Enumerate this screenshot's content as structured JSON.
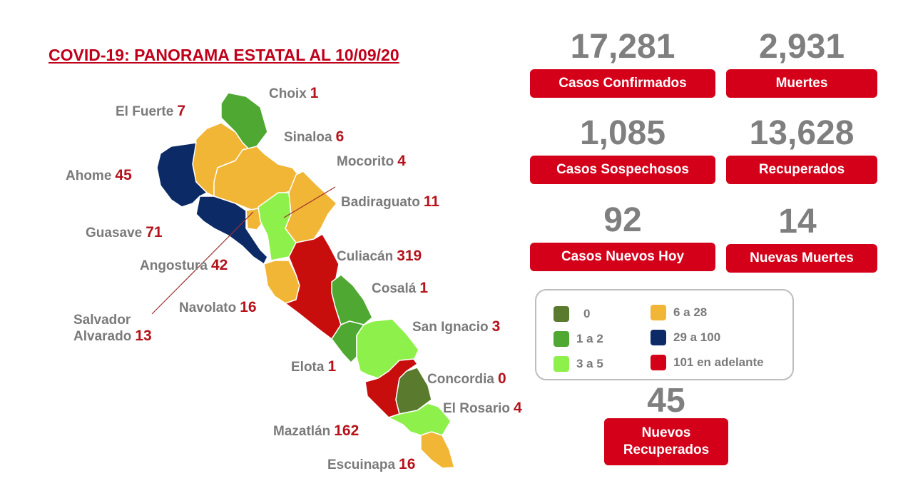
{
  "title": "COVID-19: PANORAMA ESTATAL AL 10/09/20",
  "colors": {
    "c0": "#5a7a2e",
    "c1_2": "#4fa832",
    "c3_5": "#8ef04a",
    "c6_28": "#f2b636",
    "c29_100": "#0c2a66",
    "c101": "#c80d0d",
    "box": "#d40019"
  },
  "municipalities": [
    {
      "name": "Choix",
      "cases": "1",
      "range": "c1_2"
    },
    {
      "name": "El Fuerte",
      "cases": "7",
      "range": "c6_28"
    },
    {
      "name": "Sinaloa",
      "cases": "6",
      "range": "c6_28"
    },
    {
      "name": "Mocorito",
      "cases": "4",
      "range": "c3_5"
    },
    {
      "name": "Ahome",
      "cases": "45",
      "range": "c29_100"
    },
    {
      "name": "Badiraguato",
      "cases": "11",
      "range": "c6_28"
    },
    {
      "name": "Guasave",
      "cases": "71",
      "range": "c29_100"
    },
    {
      "name": "Culiacán",
      "cases": "319",
      "range": "c101"
    },
    {
      "name": "Angostura",
      "cases": "42",
      "range": "c29_100"
    },
    {
      "name": "Cosalá",
      "cases": "1",
      "range": "c1_2"
    },
    {
      "name": "Navolato",
      "cases": "16",
      "range": "c6_28"
    },
    {
      "name": "Salvador",
      "name2": "Alvarado",
      "cases": "13",
      "range": "c6_28"
    },
    {
      "name": "San Ignacio",
      "cases": "3",
      "range": "c3_5"
    },
    {
      "name": "Elota",
      "cases": "1",
      "range": "c1_2"
    },
    {
      "name": "Concordia",
      "cases": "0",
      "range": "c0"
    },
    {
      "name": "El Rosario",
      "cases": "4",
      "range": "c3_5"
    },
    {
      "name": "Mazatlán",
      "cases": "162",
      "range": "c101"
    },
    {
      "name": "Escuinapa",
      "cases": "16",
      "range": "c6_28"
    }
  ],
  "stats": {
    "confirmed": {
      "value": "17,281",
      "label": "Casos Confirmados"
    },
    "deaths": {
      "value": "2,931",
      "label": "Muertes"
    },
    "suspected": {
      "value": "1,085",
      "label": "Casos Sospechosos"
    },
    "recovered": {
      "value": "13,628",
      "label": "Recuperados"
    },
    "new_cases": {
      "value": "92",
      "label": "Casos Nuevos Hoy"
    },
    "new_deaths": {
      "value": "14",
      "label": "Nuevas Muertes"
    },
    "new_recovered": {
      "value": "45",
      "label1": "Nuevos",
      "label2": "Recuperados"
    }
  },
  "legend": [
    {
      "label": "0",
      "color": "#5a7a2e"
    },
    {
      "label": "1 a 2",
      "color": "#4fa832"
    },
    {
      "label": "3 a 5",
      "color": "#8ef04a"
    },
    {
      "label": "6 a 28",
      "color": "#f2b636"
    },
    {
      "label": "29 a 100",
      "color": "#0c2a66"
    },
    {
      "label": "101 en adelante",
      "color": "#d40019"
    }
  ]
}
